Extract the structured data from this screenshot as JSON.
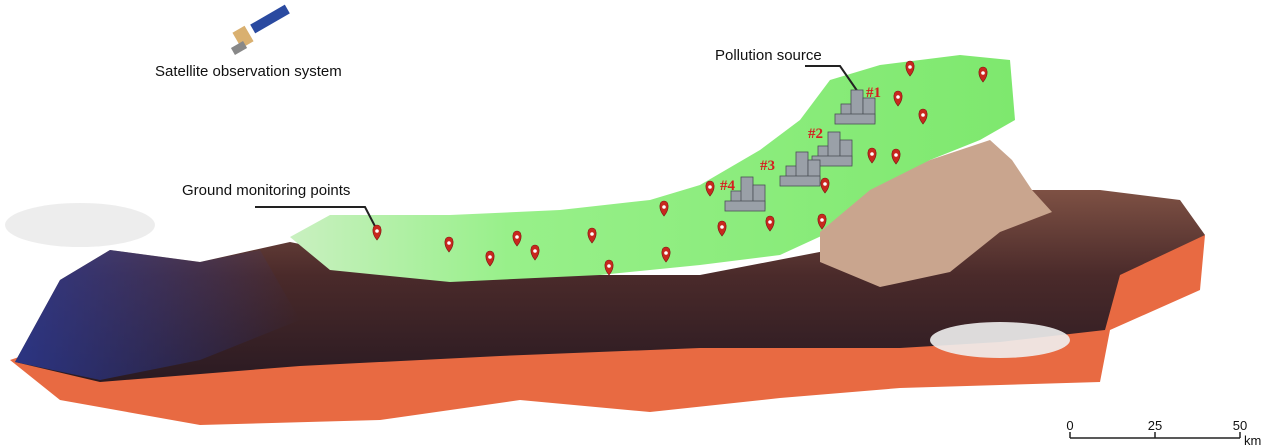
{
  "labels": {
    "satellite": "Satellite observation system",
    "pollution_source": "Pollution source",
    "ground_monitoring": "Ground monitoring points"
  },
  "sources": [
    "#1",
    "#2",
    "#3",
    "#4"
  ],
  "scale": {
    "ticks": [
      0,
      25,
      50
    ],
    "unit": "km"
  }
}
